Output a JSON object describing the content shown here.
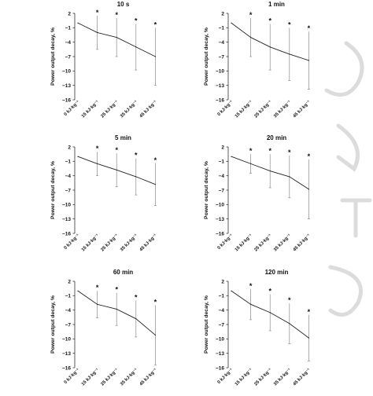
{
  "chart_data": [
    {
      "type": "line",
      "title": "10 s",
      "ylabel": "Power output decay, %",
      "ylim": [
        -16,
        2
      ],
      "yticks": [
        2,
        -1,
        -4,
        -7,
        -10,
        -13,
        -16
      ],
      "categories": [
        "0 kJ·kg⁻¹",
        "15 kJ·kg⁻¹",
        "25 kJ·kg⁻¹",
        "35 kJ·kg⁻¹",
        "45 kJ·kg⁻¹"
      ],
      "values": [
        0,
        -2.0,
        -3.0,
        -5.0,
        -7.0
      ],
      "error_bars": [
        null,
        3.5,
        4.0,
        4.8,
        6.0
      ],
      "significant": [
        false,
        true,
        true,
        true,
        true
      ],
      "marker": "*"
    },
    {
      "type": "line",
      "title": "1 min",
      "ylabel": "Power output decay, %",
      "ylim": [
        -16,
        2
      ],
      "yticks": [
        2,
        -1,
        -4,
        -7,
        -10,
        -13,
        -16
      ],
      "categories": [
        "0 kJ·kg⁻¹",
        "15 kJ·kg⁻¹",
        "25 kJ·kg⁻¹",
        "35 kJ·kg⁻¹",
        "45 kJ·kg⁻¹"
      ],
      "values": [
        0,
        -3.0,
        -5.0,
        -6.5,
        -7.8
      ],
      "error_bars": [
        null,
        4.0,
        4.8,
        5.5,
        6.0
      ],
      "significant": [
        false,
        true,
        true,
        true,
        true
      ],
      "marker": "*"
    },
    {
      "type": "line",
      "title": "5 min",
      "ylabel": "Power output decay, %",
      "ylim": [
        -16,
        2
      ],
      "yticks": [
        2,
        -1,
        -4,
        -7,
        -10,
        -13,
        -16
      ],
      "categories": [
        "0 kJ·kg⁻¹",
        "15 kJ·kg⁻¹",
        "25 kJ·kg⁻¹",
        "35 kJ·kg⁻¹",
        "45 kJ·kg⁻¹"
      ],
      "values": [
        0,
        -1.5,
        -2.8,
        -4.2,
        -5.8
      ],
      "error_bars": [
        null,
        2.5,
        3.5,
        3.8,
        4.4
      ],
      "significant": [
        false,
        true,
        true,
        true,
        true
      ],
      "marker": "*"
    },
    {
      "type": "line",
      "title": "20 min",
      "ylabel": "Power output decay, %",
      "ylim": [
        -16,
        2
      ],
      "yticks": [
        2,
        -1,
        -4,
        -7,
        -10,
        -13,
        -16
      ],
      "categories": [
        "0 kJ·kg⁻¹",
        "15 kJ·kg⁻¹",
        "25 kJ·kg⁻¹",
        "35 kJ·kg⁻¹",
        "45 kJ·kg⁻¹"
      ],
      "values": [
        0,
        -1.5,
        -3.0,
        -4.2,
        -6.8
      ],
      "error_bars": [
        null,
        2.0,
        3.5,
        4.4,
        6.2
      ],
      "significant": [
        false,
        true,
        true,
        true,
        true
      ],
      "marker": "*"
    },
    {
      "type": "line",
      "title": "60 min",
      "ylabel": "Power output decay, %",
      "ylim": [
        -16,
        2
      ],
      "yticks": [
        2,
        -1,
        -4,
        -7,
        -10,
        -13,
        -16
      ],
      "categories": [
        "0 kJ·kg⁻¹",
        "15 kJ·kg⁻¹",
        "25 kJ·kg⁻¹",
        "35 kJ·kg⁻¹",
        "45 kJ·kg⁻¹"
      ],
      "values": [
        0,
        -2.8,
        -3.8,
        -5.8,
        -9.2
      ],
      "error_bars": [
        null,
        2.8,
        3.4,
        3.8,
        6.2
      ],
      "significant": [
        false,
        true,
        true,
        true,
        true
      ],
      "marker": "*"
    },
    {
      "type": "line",
      "title": "120 min",
      "ylabel": "Power output decay, %",
      "ylim": [
        -16,
        2
      ],
      "yticks": [
        2,
        -1,
        -4,
        -7,
        -10,
        -13,
        -16
      ],
      "categories": [
        "0 kJ·kg⁻¹",
        "15 kJ·kg⁻¹",
        "25 kJ·kg⁻¹",
        "35 kJ·kg⁻¹",
        "45 kJ·kg⁻¹"
      ],
      "values": [
        0,
        -2.8,
        -4.5,
        -6.8,
        -9.8
      ],
      "error_bars": [
        null,
        3.2,
        3.8,
        4.2,
        4.8
      ],
      "significant": [
        false,
        true,
        true,
        true,
        true
      ],
      "marker": "*"
    }
  ],
  "style": {
    "line_color": "#222222",
    "errorbar_color": "#8a8a8a",
    "axis_color": "#333333",
    "watermark_color": "#dcdcdc"
  }
}
